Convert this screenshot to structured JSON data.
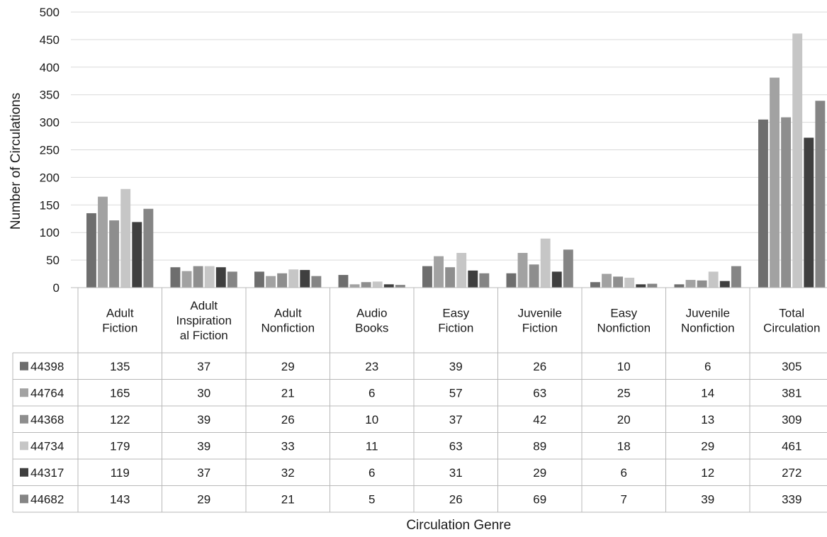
{
  "chart_data": {
    "type": "bar",
    "xlabel": "Circulation Genre",
    "ylabel": "Number of Circulations",
    "ylim": [
      0,
      500
    ],
    "yticks": [
      0,
      50,
      100,
      150,
      200,
      250,
      300,
      350,
      400,
      450,
      500
    ],
    "grid": true,
    "legend_placement": "data table rows (left)",
    "categories": [
      [
        "Adult",
        "Fiction"
      ],
      [
        "Adult",
        "Inspiration",
        "al Fiction"
      ],
      [
        "Adult",
        "Nonfiction"
      ],
      [
        "Audio",
        "Books"
      ],
      [
        "Easy",
        "Fiction"
      ],
      [
        "Juvenile",
        "Fiction"
      ],
      [
        "Easy",
        "Nonfiction"
      ],
      [
        "Juvenile",
        "Nonfiction"
      ],
      [
        "Total",
        "Circulation"
      ]
    ],
    "series": [
      {
        "name": "44398",
        "color": "#6e6e6e",
        "values": [
          135,
          37,
          29,
          23,
          39,
          26,
          10,
          6,
          305
        ]
      },
      {
        "name": "44764",
        "color": "#a2a2a2",
        "values": [
          165,
          30,
          21,
          6,
          57,
          63,
          25,
          14,
          381
        ]
      },
      {
        "name": "44368",
        "color": "#8e8e8e",
        "values": [
          122,
          39,
          26,
          10,
          37,
          42,
          20,
          13,
          309
        ]
      },
      {
        "name": "44734",
        "color": "#c6c6c6",
        "values": [
          179,
          39,
          33,
          11,
          63,
          89,
          18,
          29,
          461
        ]
      },
      {
        "name": "44317",
        "color": "#3f3f3f",
        "values": [
          119,
          37,
          32,
          6,
          31,
          29,
          6,
          12,
          272
        ]
      },
      {
        "name": "44682",
        "color": "#858585",
        "values": [
          143,
          29,
          21,
          5,
          26,
          69,
          7,
          39,
          339
        ]
      }
    ]
  }
}
